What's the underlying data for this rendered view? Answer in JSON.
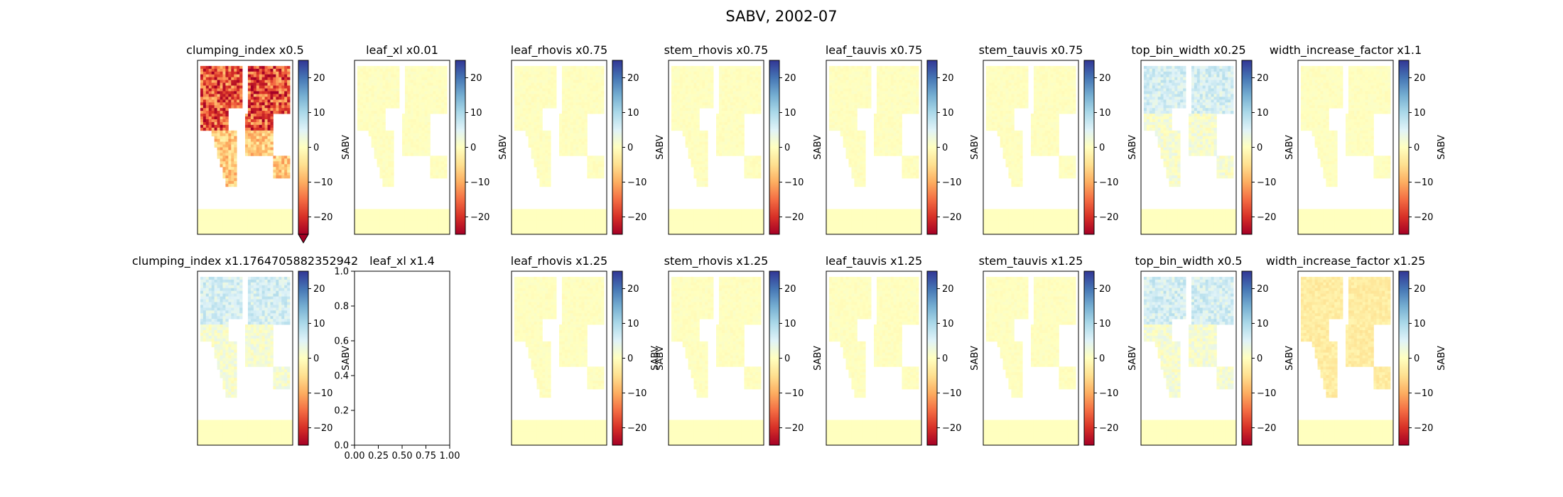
{
  "figure": {
    "suptitle": "SABV, 2002-07"
  },
  "colormap": {
    "name": "RdYlBu",
    "stops": [
      "#a50026",
      "#d73027",
      "#f46d43",
      "#fdae61",
      "#fee090",
      "#ffffbf",
      "#e0f3f8",
      "#abd9e9",
      "#74add1",
      "#4575b4",
      "#313695"
    ]
  },
  "chart_data": [
    {
      "type": "heatmap",
      "title": "clumping_index x0.5",
      "ylabel": "",
      "pattern": "strong_negative",
      "extend": "min",
      "colorbar": {
        "label": "",
        "vmin": -25,
        "vmax": 25,
        "ticks": [
          -20,
          -10,
          0,
          10,
          20
        ]
      }
    },
    {
      "type": "heatmap",
      "title": "leaf_xl x0.01",
      "ylabel": "SABV",
      "pattern": "faint",
      "extend": "",
      "colorbar": {
        "label": "",
        "vmin": -25,
        "vmax": 25,
        "ticks": [
          -20,
          -10,
          0,
          10,
          20
        ]
      }
    },
    {
      "type": "heatmap",
      "title": "leaf_rhovis x0.75",
      "ylabel": "SABV",
      "pattern": "faint",
      "extend": "",
      "colorbar": {
        "label": "",
        "vmin": -25,
        "vmax": 25,
        "ticks": [
          -20,
          -10,
          0,
          10,
          20
        ]
      }
    },
    {
      "type": "heatmap",
      "title": "stem_rhovis x0.75",
      "ylabel": "SABV",
      "pattern": "faint",
      "extend": "",
      "colorbar": {
        "label": "",
        "vmin": -25,
        "vmax": 25,
        "ticks": [
          -20,
          -10,
          0,
          10,
          20
        ]
      }
    },
    {
      "type": "heatmap",
      "title": "leaf_tauvis x0.75",
      "ylabel": "SABV",
      "pattern": "faint",
      "extend": "",
      "colorbar": {
        "label": "",
        "vmin": -25,
        "vmax": 25,
        "ticks": [
          -20,
          -10,
          0,
          10,
          20
        ]
      }
    },
    {
      "type": "heatmap",
      "title": "stem_tauvis x0.75",
      "ylabel": "SABV",
      "pattern": "faint",
      "extend": "",
      "colorbar": {
        "label": "",
        "vmin": -25,
        "vmax": 25,
        "ticks": [
          -20,
          -10,
          0,
          10,
          20
        ]
      }
    },
    {
      "type": "heatmap",
      "title": "top_bin_width x0.25",
      "ylabel": "SABV",
      "pattern": "light_positive",
      "extend": "",
      "colorbar": {
        "label": "",
        "vmin": -25,
        "vmax": 25,
        "ticks": [
          -20,
          -10,
          0,
          10,
          20
        ]
      }
    },
    {
      "type": "heatmap",
      "title": "width_increase_factor x1.1",
      "ylabel": "SABV",
      "pattern": "faint",
      "extend": "",
      "colorbar": {
        "label": "SABV",
        "vmin": -25,
        "vmax": 25,
        "ticks": [
          -20,
          -10,
          0,
          10,
          20
        ]
      }
    },
    {
      "type": "heatmap",
      "title": "clumping_index x1.1764705882352942",
      "ylabel": "",
      "pattern": "light_positive",
      "extend": "",
      "colorbar": {
        "label": "",
        "vmin": -25,
        "vmax": 25,
        "ticks": [
          -20,
          -10,
          0,
          10,
          20
        ]
      }
    },
    {
      "type": "empty",
      "title": "leaf_xl x1.4",
      "ylabel": "SABV",
      "xlim": [
        0,
        1
      ],
      "ylim": [
        0,
        1
      ],
      "xticks": [
        "0.00",
        "0.25",
        "0.50",
        "0.75",
        "1.00"
      ],
      "yticks": [
        "0.0",
        "0.2",
        "0.4",
        "0.6",
        "0.8",
        "1.0"
      ]
    },
    {
      "type": "heatmap",
      "title": "leaf_rhovis x1.25",
      "ylabel": "",
      "pattern": "faint",
      "extend": "",
      "colorbar": {
        "label": "SABV",
        "vmin": -25,
        "vmax": 25,
        "ticks": [
          -20,
          -10,
          0,
          10,
          20
        ]
      }
    },
    {
      "type": "heatmap",
      "title": "stem_rhovis x1.25",
      "ylabel": "SABV",
      "pattern": "faint",
      "extend": "",
      "colorbar": {
        "label": "",
        "vmin": -25,
        "vmax": 25,
        "ticks": [
          -20,
          -10,
          0,
          10,
          20
        ]
      }
    },
    {
      "type": "heatmap",
      "title": "leaf_tauvis x1.25",
      "ylabel": "SABV",
      "pattern": "faint",
      "extend": "",
      "colorbar": {
        "label": "",
        "vmin": -25,
        "vmax": 25,
        "ticks": [
          -20,
          -10,
          0,
          10,
          20
        ]
      }
    },
    {
      "type": "heatmap",
      "title": "stem_tauvis x1.25",
      "ylabel": "SABV",
      "pattern": "faint",
      "extend": "",
      "colorbar": {
        "label": "",
        "vmin": -25,
        "vmax": 25,
        "ticks": [
          -20,
          -10,
          0,
          10,
          20
        ]
      }
    },
    {
      "type": "heatmap",
      "title": "top_bin_width x0.5",
      "ylabel": "SABV",
      "pattern": "light_positive",
      "extend": "",
      "colorbar": {
        "label": "",
        "vmin": -25,
        "vmax": 25,
        "ticks": [
          -20,
          -10,
          0,
          10,
          20
        ]
      }
    },
    {
      "type": "heatmap",
      "title": "width_increase_factor x1.25",
      "ylabel": "SABV",
      "pattern": "mild_negative",
      "extend": "",
      "colorbar": {
        "label": "SABV",
        "vmin": -25,
        "vmax": 25,
        "ticks": [
          -20,
          -10,
          0,
          10,
          20
        ]
      }
    }
  ]
}
